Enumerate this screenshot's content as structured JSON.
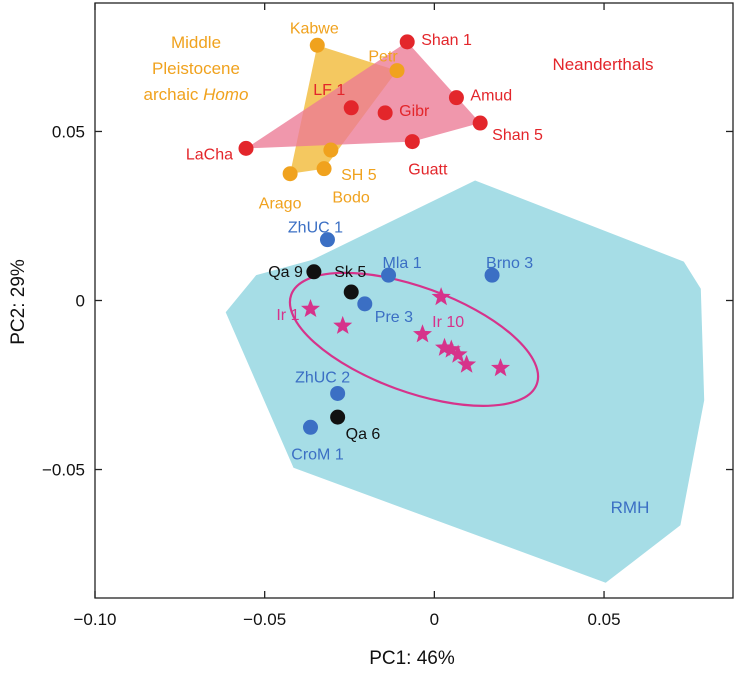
{
  "chart_data": {
    "type": "scatter",
    "title": "",
    "xlabel": "PC1: 46%",
    "ylabel": "PC2: 29%",
    "xlim": [
      -0.1,
      0.088
    ],
    "ylim": [
      -0.088,
      0.088
    ],
    "x_ticks": [
      -0.1,
      -0.05,
      0,
      0.05
    ],
    "x_tick_labels": [
      "−0.10",
      "−0.05",
      "0",
      "0.05"
    ],
    "y_ticks": [
      -0.05,
      0,
      0.05
    ],
    "y_tick_labels": [
      "−0.05",
      "0",
      "0.05"
    ],
    "grid": false,
    "colors": {
      "neanderthal": "#e3262b",
      "archaic": "#f0a21e",
      "rmh_point": "#3b6fc4",
      "rmh_hull": "#a6dde6",
      "qafzeh": "#111111",
      "iberomaurusian": "#d6338b",
      "archaic_hull": "#f3c04a",
      "neanderthal_hull": "#ec7a95"
    },
    "group_labels": [
      {
        "lines": [
          "Middle",
          "Pleistocene",
          "archaic Homo"
        ],
        "italic_last_word": "Homo",
        "color": "#f0a21e"
      },
      {
        "lines": [
          "Neanderthals"
        ],
        "color": "#e3262b"
      },
      {
        "lines": [
          "RMH"
        ],
        "color": "#3b6fc4"
      }
    ],
    "series": [
      {
        "group": "archaic",
        "points": [
          {
            "label": "Kabwe",
            "x": -0.0345,
            "y": 0.0755
          },
          {
            "label": "Petr",
            "x": -0.011,
            "y": 0.068
          },
          {
            "label": "SH 5",
            "x": -0.0305,
            "y": 0.0445
          },
          {
            "label": "Bodo",
            "x": -0.0325,
            "y": 0.039
          },
          {
            "label": "Arago",
            "x": -0.0425,
            "y": 0.0375
          }
        ]
      },
      {
        "group": "neanderthal",
        "points": [
          {
            "label": "Shan 1",
            "x": -0.008,
            "y": 0.0765
          },
          {
            "label": "LF 1",
            "x": -0.0245,
            "y": 0.057
          },
          {
            "label": "Gibr",
            "x": -0.0145,
            "y": 0.0555
          },
          {
            "label": "Amud",
            "x": 0.0065,
            "y": 0.06
          },
          {
            "label": "Shan 5",
            "x": 0.0135,
            "y": 0.0525
          },
          {
            "label": "Guatt",
            "x": -0.0065,
            "y": 0.047
          },
          {
            "label": "LaCha",
            "x": -0.0555,
            "y": 0.045
          }
        ]
      },
      {
        "group": "rmh_point",
        "points": [
          {
            "label": "ZhUC 1",
            "x": -0.0315,
            "y": 0.018
          },
          {
            "label": "Mla 1",
            "x": -0.0135,
            "y": 0.0075
          },
          {
            "label": "Brno 3",
            "x": 0.017,
            "y": 0.0075
          },
          {
            "label": "Pre 3",
            "x": -0.0205,
            "y": -0.001
          },
          {
            "label": "ZhUC 2",
            "x": -0.0285,
            "y": -0.0275
          },
          {
            "label": "CroM 1",
            "x": -0.0365,
            "y": -0.0375
          }
        ]
      },
      {
        "group": "qafzeh",
        "points": [
          {
            "label": "Qa 9",
            "x": -0.0355,
            "y": 0.0085
          },
          {
            "label": "Sk 5",
            "x": -0.0245,
            "y": 0.0025
          },
          {
            "label": "Qa 6",
            "x": -0.0285,
            "y": -0.0345
          }
        ]
      },
      {
        "group": "iberomaurusian",
        "points": [
          {
            "label": "Ir 1",
            "x": -0.0365,
            "y": -0.0025
          },
          {
            "label": "Ir 10",
            "x": 0.002,
            "y": 0.001
          },
          {
            "label": "",
            "x": -0.027,
            "y": -0.0075
          },
          {
            "label": "",
            "x": -0.0035,
            "y": -0.01
          },
          {
            "label": "",
            "x": 0.003,
            "y": -0.014
          },
          {
            "label": "",
            "x": 0.005,
            "y": -0.0145
          },
          {
            "label": "",
            "x": 0.007,
            "y": -0.016
          },
          {
            "label": "",
            "x": 0.0095,
            "y": -0.019
          },
          {
            "label": "",
            "x": 0.0195,
            "y": -0.02
          }
        ]
      }
    ],
    "hulls": [
      {
        "group": "rmh",
        "points": [
          [
            -0.0615,
            -0.0035
          ],
          [
            -0.0525,
            0.0075
          ],
          [
            -0.036,
            0.012
          ],
          [
            0.012,
            0.0355
          ],
          [
            0.0735,
            0.0115
          ],
          [
            0.0785,
            0.0035
          ],
          [
            0.0795,
            -0.0295
          ],
          [
            0.0725,
            -0.0665
          ],
          [
            0.0505,
            -0.0835
          ],
          [
            -0.0415,
            -0.0495
          ]
        ]
      },
      {
        "group": "archaic",
        "points": [
          [
            -0.0345,
            0.0755
          ],
          [
            -0.011,
            0.068
          ],
          [
            -0.0325,
            0.039
          ],
          [
            -0.0425,
            0.0375
          ]
        ]
      },
      {
        "group": "neanderthal",
        "points": [
          [
            -0.0555,
            0.045
          ],
          [
            -0.008,
            0.0765
          ],
          [
            0.0135,
            0.0525
          ],
          [
            -0.0065,
            0.047
          ]
        ]
      }
    ],
    "ellipses": [
      {
        "group": "iberomaurusian",
        "cx": -0.006,
        "cy": -0.0115,
        "rx": 0.0385,
        "ry": 0.0155,
        "angle_deg": 20
      }
    ]
  }
}
